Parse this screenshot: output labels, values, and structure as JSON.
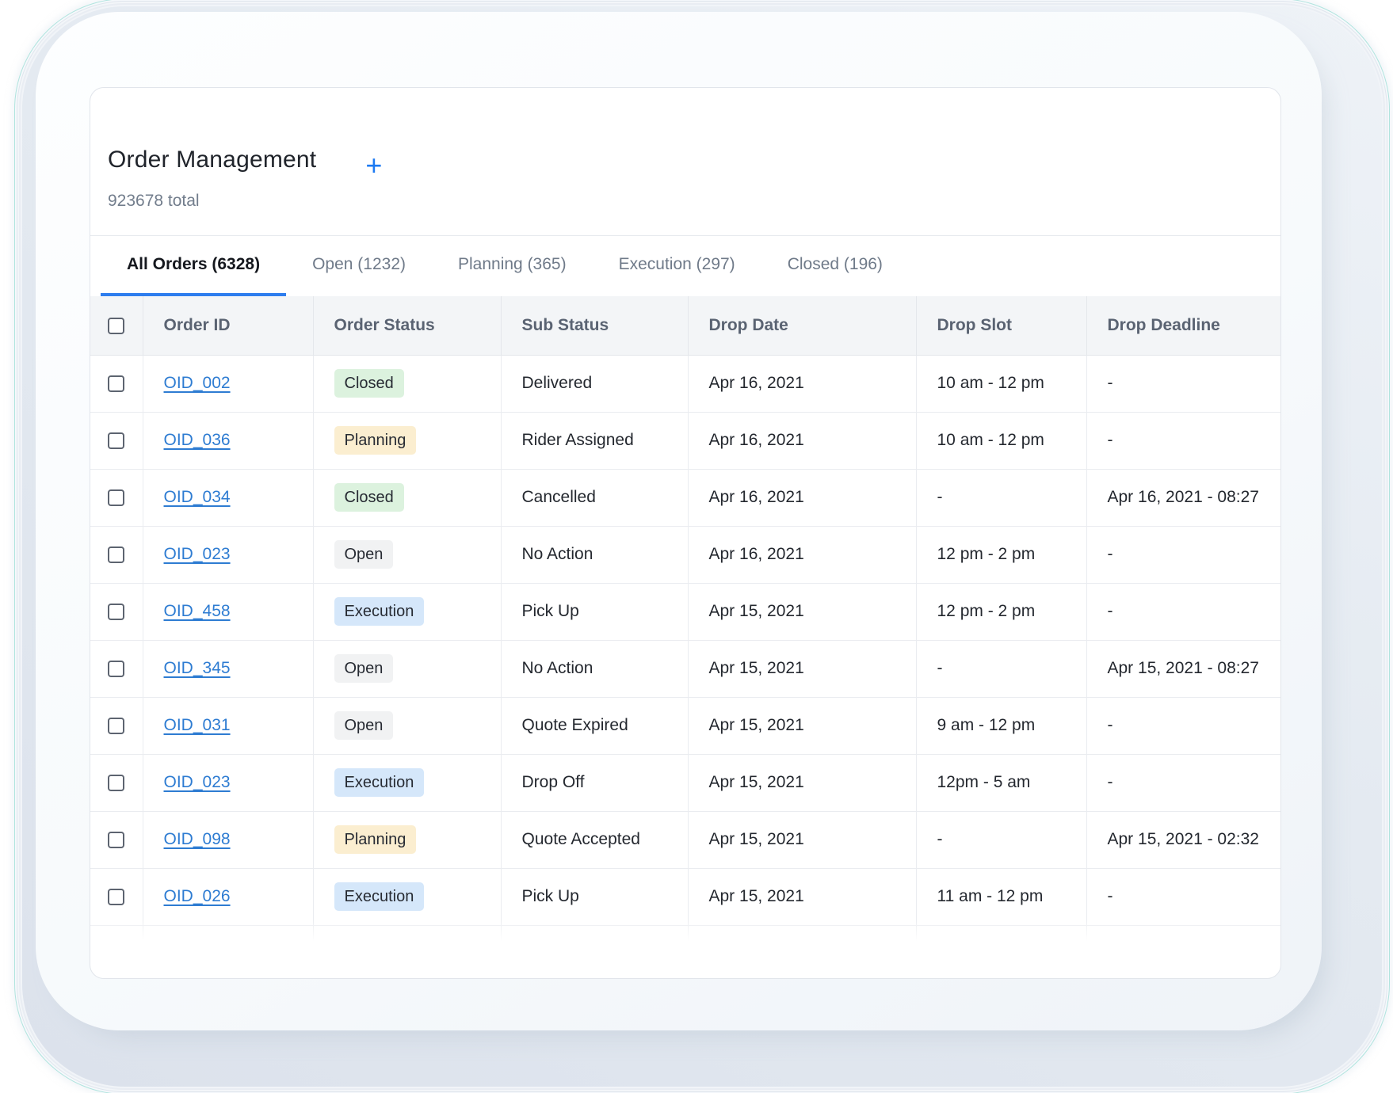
{
  "header": {
    "title": "Order Management",
    "total": "923678 total",
    "add_label": "+"
  },
  "tabs": [
    {
      "id": "all-orders",
      "label": "All Orders (6328)",
      "active": true
    },
    {
      "id": "open",
      "label": "Open (1232)",
      "active": false
    },
    {
      "id": "planning",
      "label": "Planning (365)",
      "active": false
    },
    {
      "id": "execution",
      "label": "Execution (297)",
      "active": false
    },
    {
      "id": "closed",
      "label": "Closed (196)",
      "active": false
    }
  ],
  "table": {
    "columns": [
      "Order ID",
      "Order Status",
      "Sub Status",
      "Drop Date",
      "Drop Slot",
      "Drop Deadline"
    ],
    "rows": [
      {
        "order_id": "OID_002",
        "status": "Closed",
        "sub_status": "Delivered",
        "drop_date": "Apr 16, 2021",
        "drop_slot": "10 am - 12 pm",
        "drop_deadline": "-"
      },
      {
        "order_id": "OID_036",
        "status": "Planning",
        "sub_status": "Rider Assigned",
        "drop_date": "Apr 16, 2021",
        "drop_slot": "10 am - 12 pm",
        "drop_deadline": "-"
      },
      {
        "order_id": "OID_034",
        "status": "Closed",
        "sub_status": "Cancelled",
        "drop_date": "Apr 16, 2021",
        "drop_slot": "-",
        "drop_deadline": "Apr 16, 2021 - 08:27"
      },
      {
        "order_id": "OID_023",
        "status": "Open",
        "sub_status": "No Action",
        "drop_date": "Apr 16, 2021",
        "drop_slot": "12 pm - 2 pm",
        "drop_deadline": "-"
      },
      {
        "order_id": "OID_458",
        "status": "Execution",
        "sub_status": "Pick Up",
        "drop_date": "Apr 15, 2021",
        "drop_slot": "12 pm - 2 pm",
        "drop_deadline": "-"
      },
      {
        "order_id": "OID_345",
        "status": "Open",
        "sub_status": "No Action",
        "drop_date": "Apr 15, 2021",
        "drop_slot": "-",
        "drop_deadline": "Apr 15, 2021 - 08:27"
      },
      {
        "order_id": "OID_031",
        "status": "Open",
        "sub_status": "Quote Expired",
        "drop_date": "Apr 15, 2021",
        "drop_slot": "9 am - 12 pm",
        "drop_deadline": "-"
      },
      {
        "order_id": "OID_023",
        "status": "Execution",
        "sub_status": "Drop Off",
        "drop_date": "Apr 15, 2021",
        "drop_slot": "12pm - 5 am",
        "drop_deadline": "-"
      },
      {
        "order_id": "OID_098",
        "status": "Planning",
        "sub_status": "Quote Accepted",
        "drop_date": "Apr 15, 2021",
        "drop_slot": "-",
        "drop_deadline": "Apr 15, 2021 - 02:32"
      },
      {
        "order_id": "OID_026",
        "status": "Execution",
        "sub_status": "Pick Up",
        "drop_date": "Apr 15, 2021",
        "drop_slot": "11 am - 12 pm",
        "drop_deadline": "-"
      }
    ]
  },
  "theme": {
    "accent_link": "#2e7cd2",
    "accent_underline": "#2d7dee",
    "accent_plus": "#1d7af2",
    "status_colors": {
      "Closed": "#dcf2de",
      "Planning": "#fbeed0",
      "Open": "#f1f2f3",
      "Execution": "#d5e7fa"
    }
  }
}
